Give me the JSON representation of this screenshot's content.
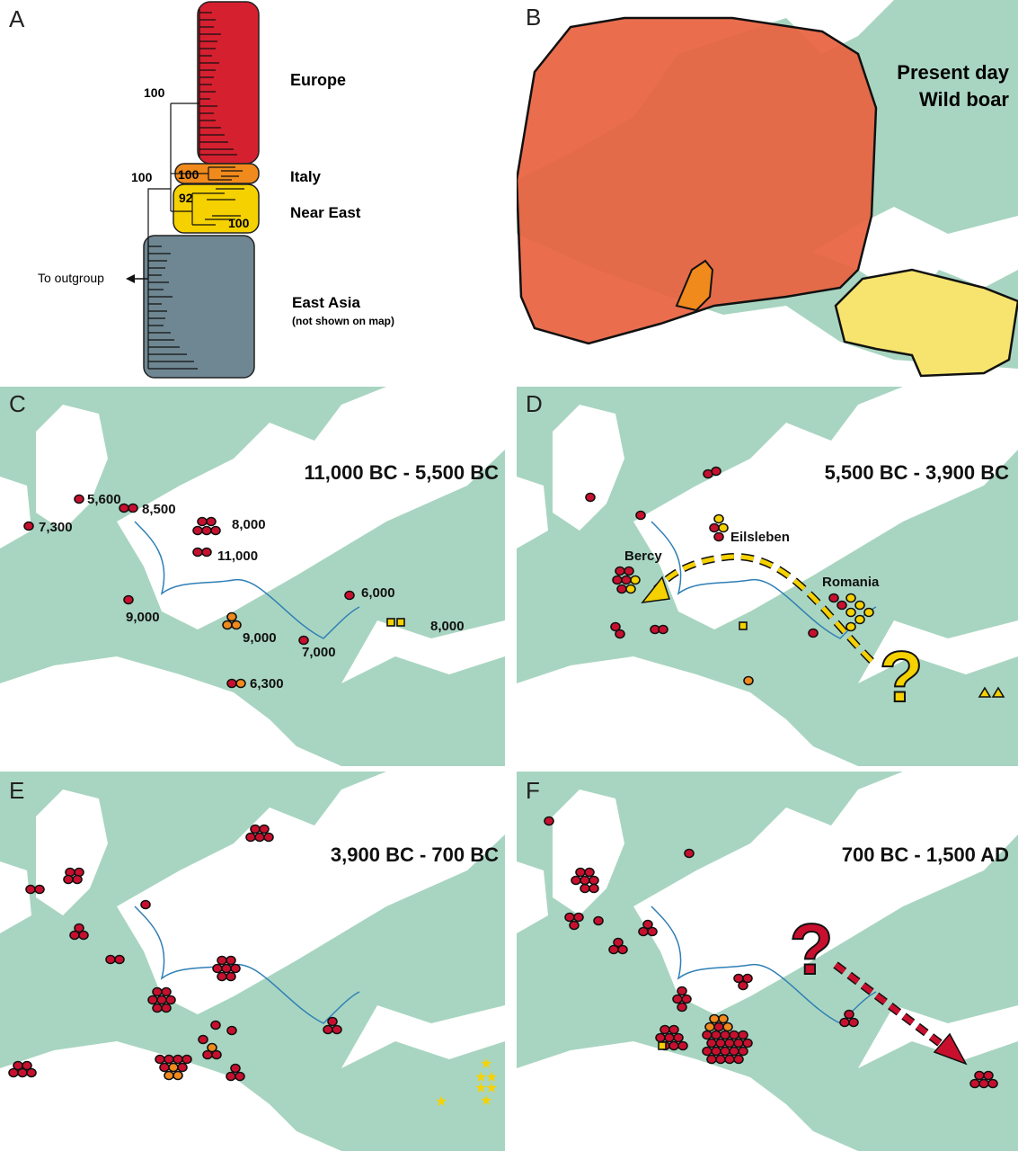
{
  "colors": {
    "sea": "#a8d5c1",
    "land": "#ffffff",
    "europe": "#d5202f",
    "italy": "#f08a1c",
    "near_east": "#f5d100",
    "east_asia": "#6f8792",
    "range_europe": "#e8623f",
    "range_near_east": "#f7e46e",
    "river": "#2f7fb6",
    "pin_red": "#c8102e",
    "pin_orange": "#f08a1c",
    "pin_yellow": "#f5d100"
  },
  "panel_a": {
    "letter": "A",
    "clades": [
      {
        "name": "Europe"
      },
      {
        "name": "Italy"
      },
      {
        "name": "Near East"
      },
      {
        "name": "East Asia",
        "note": "(not shown on map)"
      }
    ],
    "bootstrap": [
      "100",
      "100",
      "100",
      "92",
      "100"
    ],
    "outgroup_label": "To outgroup"
  },
  "panel_b": {
    "letter": "B",
    "title_line1": "Present day",
    "title_line2": "Wild boar"
  },
  "panel_c": {
    "letter": "C",
    "period": "11,000 BC - 5,500 BC",
    "labels": [
      "5,600",
      "8,500",
      "7,300",
      "8,000",
      "11,000",
      "9,000",
      "9,000",
      "6,000",
      "8,000",
      "7,000",
      "6,300"
    ]
  },
  "panel_d": {
    "letter": "D",
    "period": "5,500 BC - 3,900 BC",
    "labels": [
      "Eilsleben",
      "Bercy",
      "Romania"
    ],
    "question_mark": "?"
  },
  "panel_e": {
    "letter": "E",
    "period": "3,900 BC - 700 BC"
  },
  "panel_f": {
    "letter": "F",
    "period": "700 BC - 1,500 AD",
    "question_mark": "?"
  }
}
